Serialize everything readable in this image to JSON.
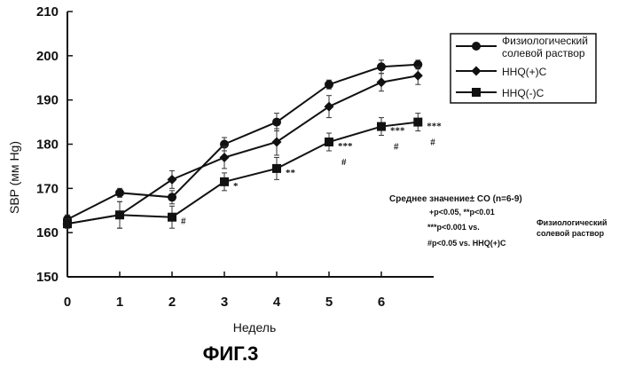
{
  "chart_data": {
    "type": "line",
    "ylabel": "SBP (мм Hg)",
    "xlabel": "Недель",
    "ylim": [
      150,
      210
    ],
    "yticks": [
      150,
      160,
      170,
      180,
      190,
      200,
      210
    ],
    "xlim": [
      0,
      7
    ],
    "x": [
      0,
      1,
      2,
      3,
      4,
      5,
      6
    ],
    "xticks": [
      0,
      1,
      2,
      3,
      4,
      5,
      6
    ],
    "legend_position": "top-right",
    "series": [
      {
        "name": "Физиологический солевой раствор",
        "legend_lines": [
          "Физиологический",
          "солевой раствор"
        ],
        "marker": "circle",
        "values": [
          163,
          169,
          168,
          180,
          185,
          193.5,
          197.5,
          198
        ],
        "x": [
          0,
          1,
          2,
          3,
          4,
          5,
          6,
          6.7
        ],
        "errors": [
          1,
          1,
          1.5,
          1.5,
          2,
          1,
          1.5,
          1
        ],
        "sig": [
          "",
          "",
          "",
          "",
          "",
          "",
          "",
          ""
        ]
      },
      {
        "name": "HHQ(+)C",
        "legend_lines": [
          "HHQ(+)C"
        ],
        "marker": "diamond",
        "values": [
          162,
          164,
          172,
          177,
          180.5,
          188.5,
          194,
          195.5
        ],
        "x": [
          0,
          1,
          2,
          3,
          4,
          5,
          6,
          6.7
        ],
        "errors": [
          1,
          3,
          2,
          2.5,
          3,
          2.5,
          2,
          2
        ],
        "sig": [
          "",
          "",
          "",
          "",
          "",
          "",
          "",
          ""
        ]
      },
      {
        "name": "HHQ(-)C",
        "legend_lines": [
          "HHQ(-)C"
        ],
        "marker": "square",
        "values": [
          162,
          164,
          163.5,
          171.5,
          174.5,
          180.5,
          184,
          185
        ],
        "x": [
          0,
          1,
          2,
          3,
          4,
          5,
          6,
          6.7
        ],
        "errors": [
          1,
          3,
          2.5,
          2,
          2.5,
          2,
          2,
          2
        ],
        "sig": [
          "",
          "",
          "#",
          "*",
          "**",
          "***\n#",
          "***\n#",
          "***\n#"
        ]
      }
    ]
  },
  "notes": {
    "line1": "Среднее значение± CO (n=6-9)",
    "line2": "+p<0.05, **p<0.01",
    "line3a": "***p<0.001 vs.",
    "line3b": "Физиологический",
    "line3c": "солевой раствор",
    "line4": "#p<0.05 vs. HHQ(+)C"
  },
  "figure_caption": "ФИГ.3"
}
